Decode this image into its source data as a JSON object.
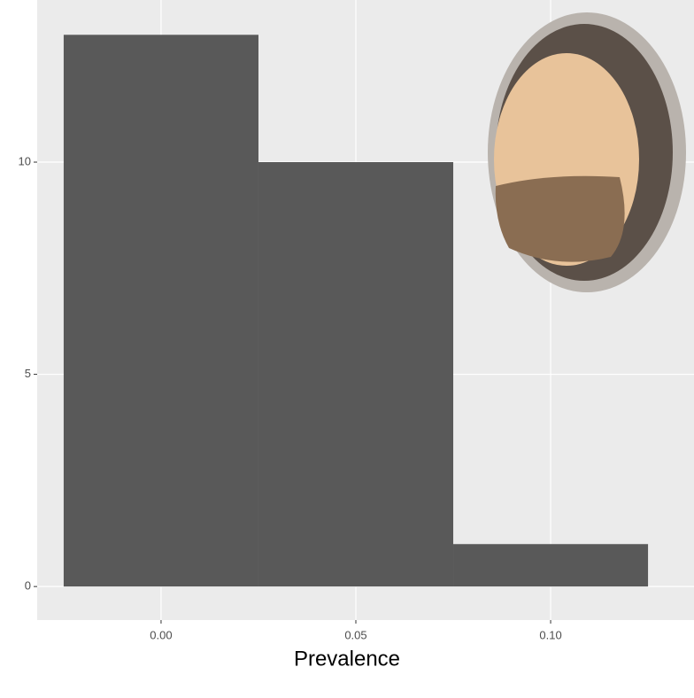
{
  "chart_data": {
    "type": "histogram",
    "x_label": "Prevalence",
    "bins": [
      -0.025,
      0.025,
      0.075,
      0.125
    ],
    "counts": [
      13,
      10,
      1
    ],
    "color": "#595959",
    "xlim": [
      -0.0318,
      0.1368
    ],
    "ylim": [
      -0.79,
      13.82
    ],
    "xticks": [
      {
        "value": 0,
        "label": "0.00"
      },
      {
        "value": 0.05,
        "label": "0.05"
      },
      {
        "value": 0.1,
        "label": "0.10"
      }
    ],
    "yticks": [
      0,
      5,
      10
    ],
    "grid": true
  }
}
